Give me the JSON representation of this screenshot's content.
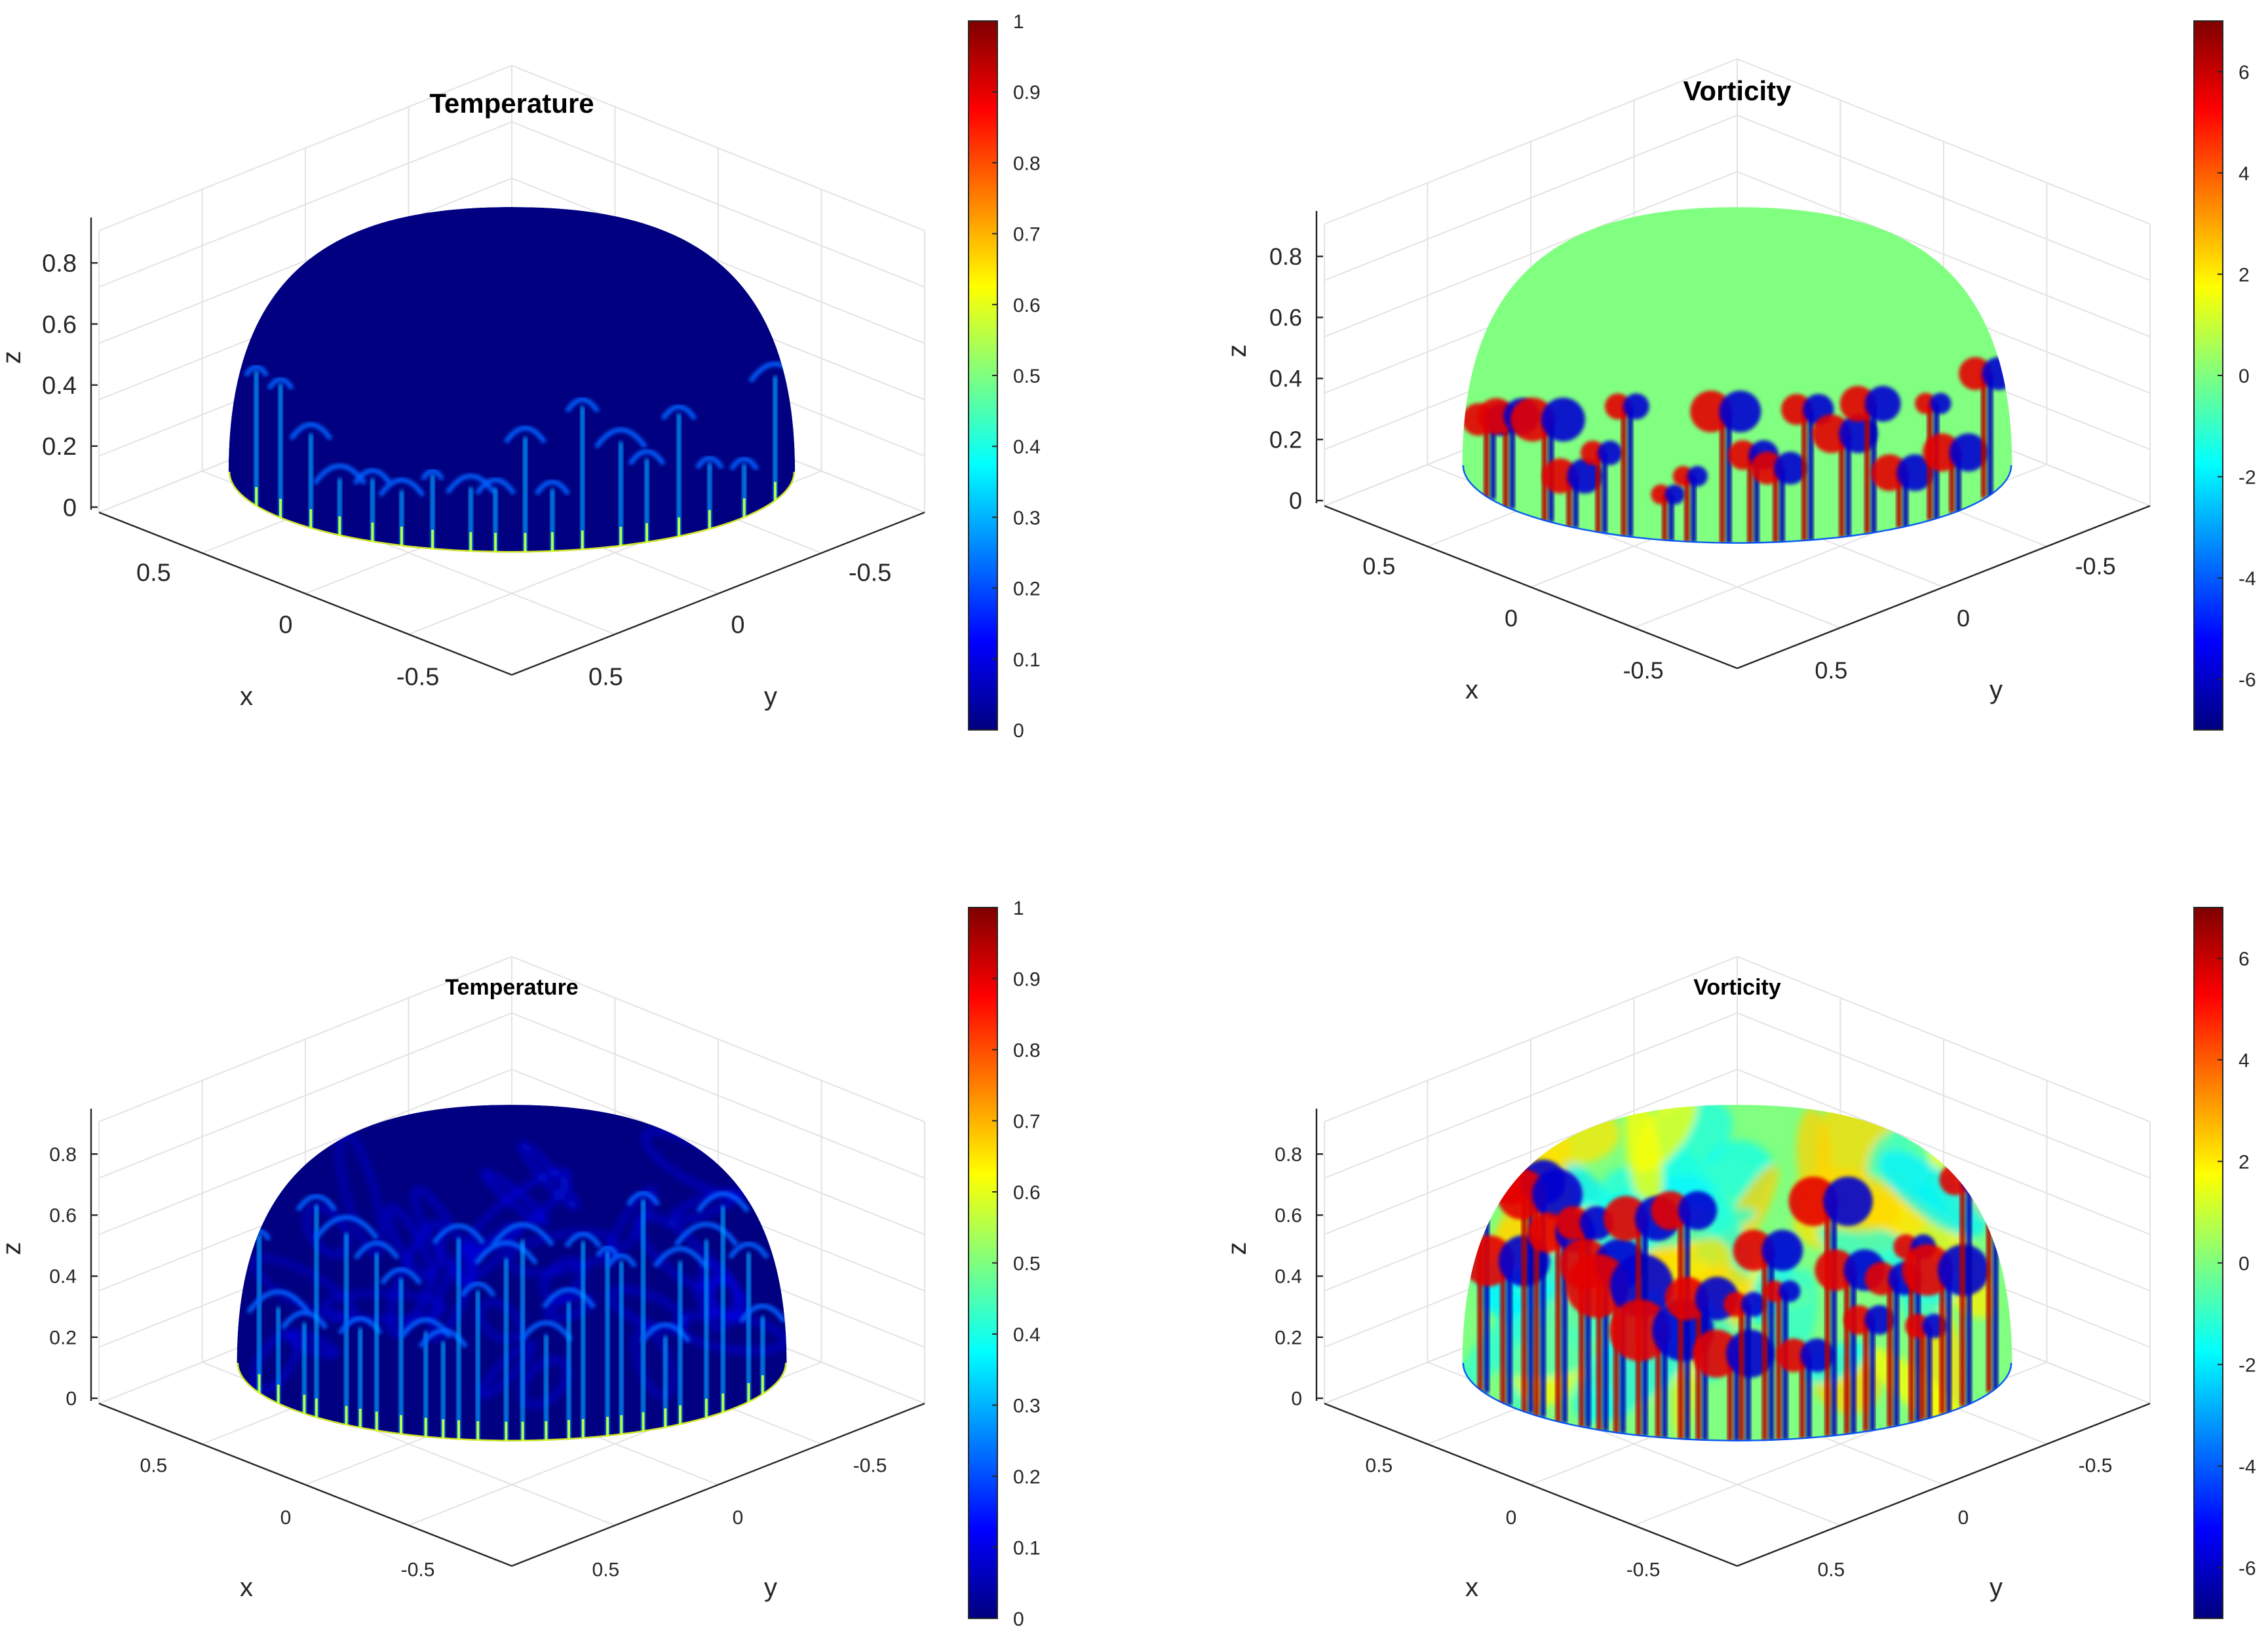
{
  "chart_data": [
    {
      "type": "heatmap",
      "title": "Temperature",
      "xlabel": "x",
      "ylabel": "y",
      "zlabel": "z",
      "x_ticks": [
        "0.5",
        "0",
        "-0.5"
      ],
      "y_ticks": [
        "-0.5",
        "0",
        "0.5"
      ],
      "z_ticks": [
        "0",
        "0.2",
        "0.4",
        "0.6",
        "0.8"
      ],
      "colorbar": {
        "min": 0,
        "max": 1,
        "ticks": [
          "0",
          "0.1",
          "0.2",
          "0.3",
          "0.4",
          "0.5",
          "0.6",
          "0.7",
          "0.8",
          "0.9",
          "1"
        ]
      },
      "colormap": "jet",
      "field": "Hemisphere surface mostly at 0 with thin hot plumes rising from the equatorial rim"
    },
    {
      "type": "heatmap",
      "title": "Vorticity",
      "xlabel": "x",
      "ylabel": "y",
      "zlabel": "z",
      "x_ticks": [
        "0.5",
        "0",
        "-0.5"
      ],
      "y_ticks": [
        "-0.5",
        "0",
        "0.5"
      ],
      "z_ticks": [
        "0",
        "0.2",
        "0.4",
        "0.6",
        "0.8"
      ],
      "colorbar": {
        "min": -7,
        "max": 7,
        "ticks": [
          "-6",
          "-4",
          "-2",
          "0",
          "2",
          "4",
          "6"
        ]
      },
      "colormap": "jet",
      "field": "Hemisphere surface near 0 with paired positive/negative vortex structures near the rim"
    },
    {
      "type": "heatmap",
      "title": "Temperature",
      "xlabel": "x",
      "ylabel": "y",
      "zlabel": "z",
      "x_ticks": [
        "0.5",
        "0",
        "-0.5"
      ],
      "y_ticks": [
        "-0.5",
        "0",
        "0.5"
      ],
      "z_ticks": [
        "0",
        "0.2",
        "0.4",
        "0.6",
        "0.8"
      ],
      "colorbar": {
        "min": 0,
        "max": 1,
        "ticks": [
          "0",
          "0.1",
          "0.2",
          "0.3",
          "0.4",
          "0.5",
          "0.6",
          "0.7",
          "0.8",
          "0.9",
          "1"
        ]
      },
      "colormap": "jet",
      "field": "Hemisphere mostly near 0 with swirling plumes reaching higher latitudes"
    },
    {
      "type": "heatmap",
      "title": "Vorticity",
      "xlabel": "x",
      "ylabel": "y",
      "zlabel": "z",
      "x_ticks": [
        "0.5",
        "0",
        "-0.5"
      ],
      "y_ticks": [
        "-0.5",
        "0",
        "0.5"
      ],
      "z_ticks": [
        "0",
        "0.2",
        "0.4",
        "0.6",
        "0.8"
      ],
      "colorbar": {
        "min": -7,
        "max": 7,
        "ticks": [
          "-6",
          "-4",
          "-2",
          "0",
          "2",
          "4",
          "6"
        ]
      },
      "colormap": "jet",
      "field": "Turbulent vorticity field covering the whole hemisphere"
    }
  ]
}
